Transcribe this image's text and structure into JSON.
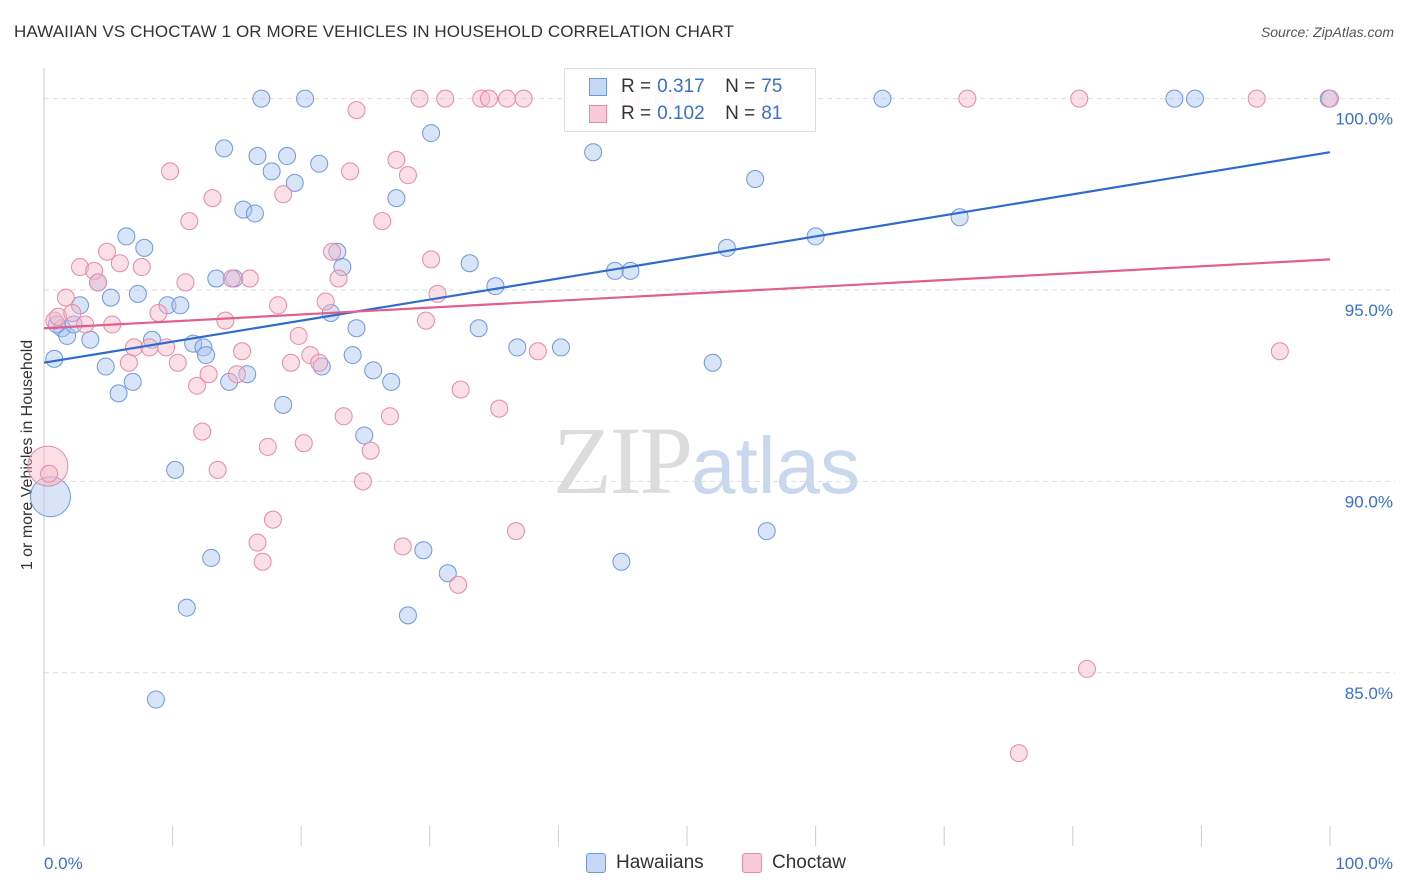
{
  "title": "HAWAIIAN VS CHOCTAW 1 OR MORE VEHICLES IN HOUSEHOLD CORRELATION CHART",
  "source": "Source: ZipAtlas.com",
  "watermark": {
    "zip": "ZIP",
    "atlas": "atlas"
  },
  "legend_top": [
    {
      "r_label": "R =",
      "r_value": "0.317",
      "n_label": "N =",
      "n_value": "75"
    },
    {
      "r_label": "R =",
      "r_value": "0.102",
      "n_label": "N =",
      "n_value": "81"
    }
  ],
  "colors": {
    "blue_fill": "#a9c4ef",
    "blue_stroke": "#6f98dc",
    "blue_line": "#2f6bcc",
    "pink_fill": "#f6b8ca",
    "pink_stroke": "#e889a6",
    "pink_line": "#e0608b",
    "tick_label": "#3a6fd1",
    "grid": "#dddddd"
  },
  "chart_data": {
    "type": "scatter",
    "title": "HAWAIIAN VS CHOCTAW 1 OR MORE VEHICLES IN HOUSEHOLD CORRELATION CHART",
    "xlabel": "",
    "ylabel": "1 or more Vehicles in Household",
    "xlim": [
      0,
      100
    ],
    "ylim": [
      80.5,
      100.8
    ],
    "x_tick_labels": [
      "0.0%",
      "100.0%"
    ],
    "y_ticks": [
      85,
      90,
      95,
      100
    ],
    "y_tick_labels": [
      "85.0%",
      "90.0%",
      "95.0%",
      "100.0%"
    ],
    "grid": "horizontal dashed",
    "legend_position": "bottom",
    "series": [
      {
        "name": "Hawaiians",
        "trend": {
          "x": [
            0,
            100
          ],
          "y": [
            93.1,
            98.6
          ]
        },
        "points": [
          [
            0.8,
            93.2
          ],
          [
            1.4,
            94.0
          ],
          [
            1.8,
            93.8
          ],
          [
            2.3,
            94.1
          ],
          [
            2.8,
            94.6
          ],
          [
            3.6,
            93.7
          ],
          [
            4.2,
            95.2
          ],
          [
            4.8,
            93.0
          ],
          [
            5.2,
            94.8
          ],
          [
            5.8,
            92.3
          ],
          [
            6.4,
            96.4
          ],
          [
            6.9,
            92.6
          ],
          [
            7.3,
            94.9
          ],
          [
            7.8,
            96.1
          ],
          [
            8.4,
            93.7
          ],
          [
            8.7,
            84.3
          ],
          [
            9.6,
            94.6
          ],
          [
            10.2,
            90.3
          ],
          [
            10.6,
            94.6
          ],
          [
            11.1,
            86.7
          ],
          [
            11.6,
            93.6
          ],
          [
            12.4,
            93.5
          ],
          [
            12.6,
            93.3
          ],
          [
            13.0,
            88.0
          ],
          [
            13.4,
            95.3
          ],
          [
            14.0,
            98.7
          ],
          [
            14.4,
            92.6
          ],
          [
            14.8,
            95.3
          ],
          [
            15.5,
            97.1
          ],
          [
            15.8,
            92.8
          ],
          [
            16.4,
            97.0
          ],
          [
            16.6,
            98.5
          ],
          [
            16.9,
            100.0
          ],
          [
            17.7,
            98.1
          ],
          [
            18.6,
            92.0
          ],
          [
            18.9,
            98.5
          ],
          [
            19.5,
            97.8
          ],
          [
            20.3,
            100.0
          ],
          [
            21.4,
            98.3
          ],
          [
            21.6,
            93.0
          ],
          [
            22.3,
            94.4
          ],
          [
            22.8,
            96.0
          ],
          [
            23.2,
            95.6
          ],
          [
            24.0,
            93.3
          ],
          [
            24.3,
            94.0
          ],
          [
            24.9,
            91.2
          ],
          [
            25.6,
            92.9
          ],
          [
            27.0,
            92.6
          ],
          [
            27.4,
            97.4
          ],
          [
            28.3,
            86.5
          ],
          [
            29.5,
            88.2
          ],
          [
            30.1,
            99.1
          ],
          [
            31.4,
            87.6
          ],
          [
            33.1,
            95.7
          ],
          [
            33.8,
            94.0
          ],
          [
            35.1,
            95.1
          ],
          [
            36.8,
            93.5
          ],
          [
            40.2,
            93.5
          ],
          [
            42.7,
            98.6
          ],
          [
            44.4,
            95.5
          ],
          [
            44.9,
            87.9
          ],
          [
            45.6,
            95.5
          ],
          [
            49.5,
            100.0
          ],
          [
            52.0,
            93.1
          ],
          [
            53.1,
            96.1
          ],
          [
            55.3,
            97.9
          ],
          [
            56.2,
            88.7
          ],
          [
            60.0,
            96.4
          ],
          [
            65.2,
            100.0
          ],
          [
            71.2,
            96.9
          ],
          [
            87.9,
            100.0
          ],
          [
            89.5,
            100.0
          ],
          [
            99.9,
            100.0
          ],
          [
            0.5,
            89.6
          ],
          [
            1.0,
            94.1
          ]
        ],
        "note_large_points": [
          [
            0.5,
            89.6
          ]
        ]
      },
      {
        "name": "Choctaw",
        "trend": {
          "x": [
            0,
            100
          ],
          "y": [
            94.0,
            95.8
          ]
        },
        "points": [
          [
            0.3,
            90.4
          ],
          [
            0.8,
            94.2
          ],
          [
            1.1,
            94.3
          ],
          [
            1.7,
            94.8
          ],
          [
            2.2,
            94.4
          ],
          [
            2.8,
            95.6
          ],
          [
            3.2,
            94.1
          ],
          [
            3.9,
            95.5
          ],
          [
            4.2,
            95.2
          ],
          [
            4.9,
            96.0
          ],
          [
            5.3,
            94.1
          ],
          [
            5.9,
            95.7
          ],
          [
            6.6,
            93.1
          ],
          [
            7.0,
            93.5
          ],
          [
            7.6,
            95.6
          ],
          [
            8.2,
            93.5
          ],
          [
            8.9,
            94.4
          ],
          [
            9.5,
            93.5
          ],
          [
            9.8,
            98.1
          ],
          [
            10.4,
            93.1
          ],
          [
            11.0,
            95.2
          ],
          [
            11.3,
            96.8
          ],
          [
            11.9,
            92.5
          ],
          [
            12.3,
            91.3
          ],
          [
            12.8,
            92.8
          ],
          [
            13.1,
            97.4
          ],
          [
            13.5,
            90.3
          ],
          [
            14.1,
            94.2
          ],
          [
            14.6,
            95.3
          ],
          [
            15.0,
            92.8
          ],
          [
            15.4,
            93.4
          ],
          [
            16.0,
            95.3
          ],
          [
            16.6,
            88.4
          ],
          [
            17.0,
            87.9
          ],
          [
            17.4,
            90.9
          ],
          [
            17.8,
            89.0
          ],
          [
            18.2,
            94.6
          ],
          [
            18.6,
            97.5
          ],
          [
            19.2,
            93.1
          ],
          [
            19.8,
            93.8
          ],
          [
            20.2,
            91.0
          ],
          [
            20.7,
            93.3
          ],
          [
            21.4,
            93.1
          ],
          [
            21.9,
            94.7
          ],
          [
            22.4,
            96.0
          ],
          [
            22.9,
            95.3
          ],
          [
            23.3,
            91.7
          ],
          [
            23.8,
            98.1
          ],
          [
            24.3,
            99.7
          ],
          [
            24.8,
            90.0
          ],
          [
            25.4,
            90.8
          ],
          [
            26.3,
            96.8
          ],
          [
            26.9,
            91.7
          ],
          [
            27.4,
            98.4
          ],
          [
            27.9,
            88.3
          ],
          [
            28.3,
            98.0
          ],
          [
            29.2,
            100.0
          ],
          [
            29.7,
            94.2
          ],
          [
            30.1,
            95.8
          ],
          [
            30.6,
            94.9
          ],
          [
            31.2,
            100.0
          ],
          [
            32.2,
            87.3
          ],
          [
            32.4,
            92.4
          ],
          [
            34.0,
            100.0
          ],
          [
            34.6,
            100.0
          ],
          [
            35.4,
            91.9
          ],
          [
            36.0,
            100.0
          ],
          [
            36.7,
            88.7
          ],
          [
            37.3,
            100.0
          ],
          [
            38.4,
            93.4
          ],
          [
            45.6,
            100.0
          ],
          [
            48.2,
            100.0
          ],
          [
            56.7,
            100.0
          ],
          [
            71.8,
            100.0
          ],
          [
            75.8,
            82.9
          ],
          [
            80.5,
            100.0
          ],
          [
            81.1,
            85.1
          ],
          [
            94.3,
            100.0
          ],
          [
            96.1,
            93.4
          ],
          [
            100.0,
            100.0
          ],
          [
            0.4,
            90.2
          ]
        ],
        "note_large_points": [
          [
            0.3,
            90.4
          ]
        ]
      }
    ]
  },
  "legend_bottom": [
    {
      "label": "Hawaiians"
    },
    {
      "label": "Choctaw"
    }
  ]
}
